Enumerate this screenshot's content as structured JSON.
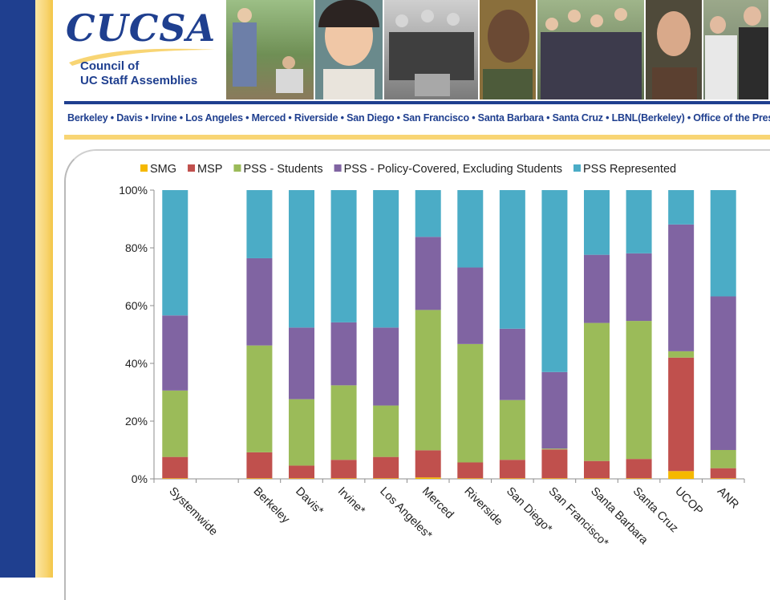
{
  "header": {
    "logo_text": "CUCSA",
    "logo_sub1": "Council of",
    "logo_sub2": "UC Staff Assemblies",
    "campuses": "Berkeley • Davis • Irvine • Los Angeles • Merced • Riverside • San Diego • San Francisco • Santa Barbara • Santa Cruz • LBNL(Berkeley) • Office of the President"
  },
  "colors": {
    "brand_blue": "#1f3f8f",
    "brand_gold": "#f8d574"
  },
  "chart_data": {
    "type": "bar",
    "stacked": true,
    "percent": true,
    "categories": [
      "Systemwide",
      "",
      "Berkeley",
      "Davis*",
      "Irvine*",
      "Los Angeles*",
      "Merced",
      "Riverside",
      "San Diego*",
      "San Francisco*",
      "Santa Barbara",
      "Santa Cruz",
      "UCOP",
      "ANR"
    ],
    "series": [
      {
        "name": "SMG",
        "color": "#f5b800",
        "values": [
          0.2,
          null,
          0.2,
          0.2,
          0.2,
          0.2,
          0.5,
          0.2,
          0.2,
          0.2,
          0.2,
          0.2,
          2.7,
          0.2
        ]
      },
      {
        "name": "MSP",
        "color": "#c0504d",
        "values": [
          7.4,
          null,
          9.0,
          4.4,
          6.4,
          7.4,
          9.4,
          5.5,
          6.4,
          10.0,
          6.0,
          6.7,
          39.3,
          3.5
        ]
      },
      {
        "name": "PSS - Students",
        "color": "#9bbb59",
        "values": [
          23.0,
          null,
          37.0,
          23.0,
          25.8,
          17.8,
          48.6,
          41.0,
          20.7,
          0.3,
          47.8,
          47.8,
          2.2,
          6.3
        ]
      },
      {
        "name": "PSS - Policy-Covered, Excluding Students",
        "color": "#8064a2",
        "values": [
          26.0,
          null,
          30.2,
          24.8,
          21.8,
          27.0,
          25.3,
          26.5,
          24.7,
          26.5,
          23.6,
          23.4,
          43.9,
          53.2
        ]
      },
      {
        "name": "PSS Represented",
        "color": "#4bacc6",
        "values": [
          43.4,
          null,
          23.6,
          47.6,
          45.8,
          47.6,
          16.2,
          26.8,
          48.0,
          63.0,
          22.4,
          21.9,
          11.9,
          36.8
        ]
      }
    ],
    "ylim": [
      0,
      100
    ],
    "yticks": [
      "0%",
      "20%",
      "40%",
      "60%",
      "80%",
      "100%"
    ],
    "legend_position": "top",
    "grid": false
  }
}
